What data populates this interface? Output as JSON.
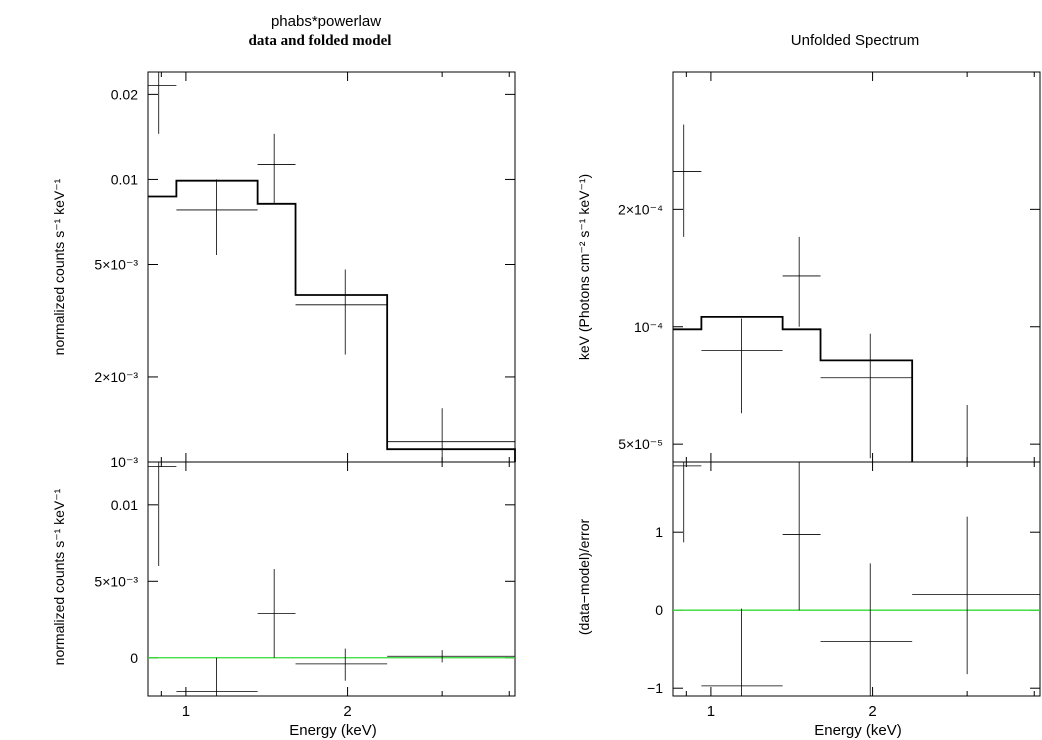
{
  "chart_data": [
    {
      "type": "line",
      "panel": "left-top",
      "title": "phabs*powerlaw",
      "subtitle": "data and folded model",
      "xlabel": "",
      "ylabel": "normalized counts s⁻¹ keV⁻¹",
      "xscale": "log",
      "yscale": "log",
      "xlim": [
        0.85,
        4.1
      ],
      "ylim": [
        0.001,
        0.024
      ],
      "yticks": [
        {
          "value": 0.02,
          "label": "0.02"
        },
        {
          "value": 0.01,
          "label": "0.01"
        },
        {
          "value": 0.005,
          "label": "5×10⁻³"
        },
        {
          "value": 0.002,
          "label": "2×10⁻³"
        },
        {
          "value": 0.001,
          "label": "10⁻³"
        }
      ],
      "data_points": [
        {
          "x": 0.89,
          "xlo": 0.85,
          "xhi": 0.96,
          "y": 0.0215,
          "ylo": 0.0145,
          "yhi": 0.024
        },
        {
          "x": 1.14,
          "xlo": 0.96,
          "xhi": 1.36,
          "y": 0.0078,
          "ylo": 0.0054,
          "yhi": 0.01
        },
        {
          "x": 1.46,
          "xlo": 1.36,
          "xhi": 1.6,
          "y": 0.0113,
          "ylo": 0.0082,
          "yhi": 0.0145
        },
        {
          "x": 1.98,
          "xlo": 1.6,
          "xhi": 2.37,
          "y": 0.0036,
          "ylo": 0.0024,
          "yhi": 0.0048
        },
        {
          "x": 3.0,
          "xlo": 2.37,
          "xhi": 4.1,
          "y": 0.00118,
          "ylo": 0.001,
          "yhi": 0.00155
        }
      ],
      "model_steps": [
        {
          "xlo": 0.85,
          "xhi": 0.96,
          "y": 0.0087
        },
        {
          "xlo": 0.96,
          "xhi": 1.36,
          "y": 0.0099
        },
        {
          "xlo": 1.36,
          "xhi": 1.6,
          "y": 0.0082
        },
        {
          "xlo": 1.6,
          "xhi": 2.37,
          "y": 0.0039
        },
        {
          "xlo": 2.37,
          "xhi": 4.1,
          "y": 0.00111
        }
      ]
    },
    {
      "type": "line",
      "panel": "left-bottom",
      "xlabel": "Energy (keV)",
      "ylabel": "normalized counts s⁻¹ keV⁻¹",
      "xscale": "log",
      "yscale": "linear",
      "xlim": [
        0.85,
        4.1
      ],
      "ylim": [
        -0.0025,
        0.0128
      ],
      "xticks": [
        {
          "value": 1,
          "label": "1"
        },
        {
          "value": 2,
          "label": "2"
        }
      ],
      "yticks": [
        {
          "value": 0.01,
          "label": "0.01"
        },
        {
          "value": 0.005,
          "label": "5×10⁻³"
        },
        {
          "value": 0,
          "label": "0"
        }
      ],
      "baseline": {
        "y": 0,
        "color": "#33dd33"
      },
      "data_points": [
        {
          "x": 0.89,
          "xlo": 0.85,
          "xhi": 0.96,
          "y": 0.0125,
          "ylo": 0.006,
          "yhi": 0.0128
        },
        {
          "x": 1.14,
          "xlo": 0.96,
          "xhi": 1.36,
          "y": -0.0022,
          "ylo": -0.0025,
          "yhi": 0.0
        },
        {
          "x": 1.46,
          "xlo": 1.36,
          "xhi": 1.6,
          "y": 0.0029,
          "ylo": 0.0,
          "yhi": 0.0058
        },
        {
          "x": 1.98,
          "xlo": 1.6,
          "xhi": 2.37,
          "y": -0.0004,
          "ylo": -0.0015,
          "yhi": 0.0006
        },
        {
          "x": 3.0,
          "xlo": 2.37,
          "xhi": 4.1,
          "y": 0.0001,
          "ylo": -0.0003,
          "yhi": 0.0005
        }
      ]
    },
    {
      "type": "line",
      "panel": "right-top",
      "title": "Unfolded Spectrum",
      "xlabel": "",
      "ylabel": "keV (Photons cm⁻² s⁻¹ keV⁻¹)",
      "xscale": "log",
      "yscale": "log",
      "xlim": [
        0.85,
        4.1
      ],
      "ylim": [
        4.5e-05,
        0.00045
      ],
      "yticks": [
        {
          "value": 0.0002,
          "label": "2×10⁻⁴"
        },
        {
          "value": 0.0001,
          "label": "10⁻⁴"
        },
        {
          "value": 5e-05,
          "label": "5×10⁻⁵"
        }
      ],
      "data_points": [
        {
          "x": 0.89,
          "xlo": 0.85,
          "xhi": 0.96,
          "y": 0.00025,
          "ylo": 0.00017,
          "yhi": 0.00033
        },
        {
          "x": 1.14,
          "xlo": 0.96,
          "xhi": 1.36,
          "y": 8.7e-05,
          "ylo": 6e-05,
          "yhi": 0.000105
        },
        {
          "x": 1.46,
          "xlo": 1.36,
          "xhi": 1.6,
          "y": 0.000135,
          "ylo": 0.0001,
          "yhi": 0.00017
        },
        {
          "x": 1.98,
          "xlo": 1.6,
          "xhi": 2.37,
          "y": 7.4e-05,
          "ylo": 4.6e-05,
          "yhi": 9.6e-05
        },
        {
          "x": 3.0,
          "xlo": 2.37,
          "xhi": 4.1,
          "y": 4.5e-05,
          "ylo": 4.5e-05,
          "yhi": 6.3e-05
        }
      ],
      "model_steps": [
        {
          "xlo": 0.85,
          "xhi": 0.96,
          "y": 9.85e-05
        },
        {
          "xlo": 0.96,
          "xhi": 1.36,
          "y": 0.000106
        },
        {
          "xlo": 1.36,
          "xhi": 1.6,
          "y": 9.85e-05
        },
        {
          "xlo": 1.6,
          "xhi": 2.37,
          "y": 8.2e-05
        },
        {
          "xlo": 2.37,
          "xhi": 2.37,
          "y": 4.5e-05
        }
      ]
    },
    {
      "type": "line",
      "panel": "right-bottom",
      "xlabel": "Energy (keV)",
      "ylabel": "(data−model)/error",
      "xscale": "log",
      "yscale": "linear",
      "xlim": [
        0.85,
        4.1
      ],
      "ylim": [
        -1.1,
        1.9
      ],
      "xticks": [
        {
          "value": 1,
          "label": "1"
        },
        {
          "value": 2,
          "label": "2"
        }
      ],
      "yticks": [
        {
          "value": 1,
          "label": "1"
        },
        {
          "value": 0,
          "label": "0"
        },
        {
          "value": -1,
          "label": "−1"
        }
      ],
      "baseline": {
        "y": 0,
        "color": "#33dd33"
      },
      "data_points": [
        {
          "x": 0.89,
          "xlo": 0.85,
          "xhi": 0.96,
          "y": 1.85,
          "ylo": 0.87,
          "yhi": 1.9
        },
        {
          "x": 1.14,
          "xlo": 0.96,
          "xhi": 1.36,
          "y": -0.97,
          "ylo": -1.1,
          "yhi": 0.02
        },
        {
          "x": 1.46,
          "xlo": 1.36,
          "xhi": 1.6,
          "y": 0.97,
          "ylo": 0.0,
          "yhi": 1.9
        },
        {
          "x": 1.98,
          "xlo": 1.6,
          "xhi": 2.37,
          "y": -0.4,
          "ylo": -1.1,
          "yhi": 0.6
        },
        {
          "x": 3.0,
          "xlo": 2.37,
          "xhi": 4.1,
          "y": 0.2,
          "ylo": -0.82,
          "yhi": 1.2
        }
      ]
    }
  ]
}
